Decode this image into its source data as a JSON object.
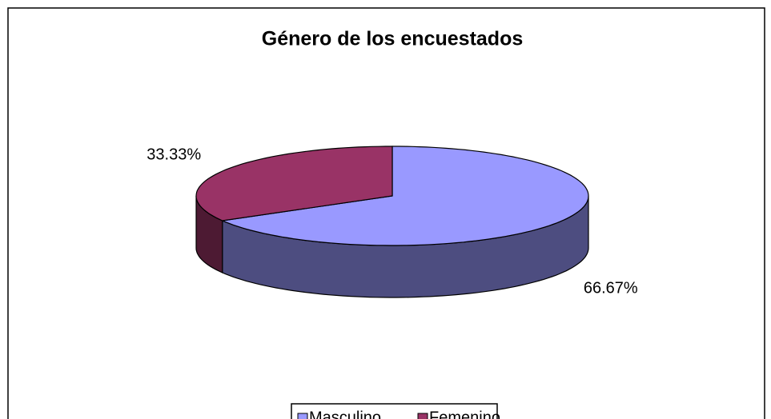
{
  "chart_data": {
    "type": "pie3d",
    "title": "Género de los encuestados",
    "categories": [
      "Masculino",
      "Femenino"
    ],
    "values": [
      66.67,
      33.33
    ],
    "value_labels": [
      "66.67%",
      "33.33%"
    ],
    "colors": [
      "#9999ff",
      "#993366"
    ],
    "legend": "bottom"
  }
}
